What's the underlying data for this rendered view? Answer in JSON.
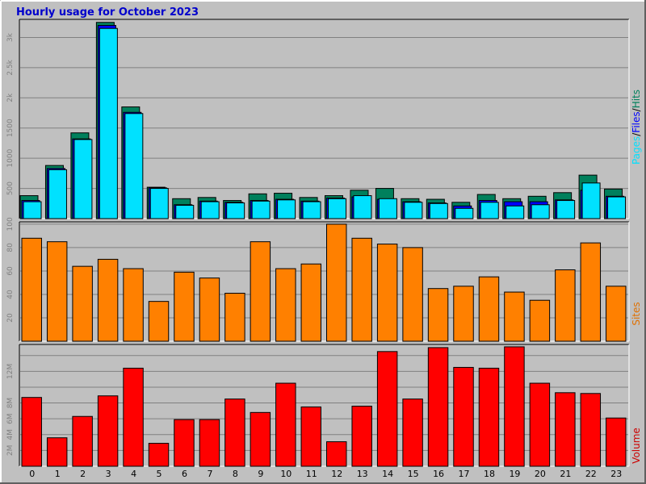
{
  "title": "Hourly usage for October 2023",
  "colors": {
    "frame": "#c0c0c0",
    "plot_bg": "#c0c0c0",
    "grid": "#808080",
    "title": "#0000cc",
    "hits": "#00805c",
    "files": "#0000ff",
    "pages": "#00e1ff",
    "sites": "#ff8000",
    "volume": "#ff0000",
    "tick_text": "#808080"
  },
  "chart_data": [
    {
      "type": "bar",
      "panel": "hits-files-pages",
      "categories": [
        "0",
        "1",
        "2",
        "3",
        "4",
        "5",
        "6",
        "7",
        "8",
        "9",
        "10",
        "11",
        "12",
        "13",
        "14",
        "15",
        "16",
        "17",
        "18",
        "19",
        "20",
        "21",
        "22",
        "23"
      ],
      "series": [
        {
          "name": "Hits",
          "values": [
            380,
            880,
            1420,
            3250,
            1850,
            520,
            330,
            350,
            300,
            410,
            420,
            350,
            380,
            470,
            500,
            330,
            320,
            270,
            400,
            330,
            370,
            430,
            720,
            490
          ]
        },
        {
          "name": "Files",
          "values": [
            300,
            830,
            1320,
            3200,
            1760,
            510,
            230,
            290,
            270,
            300,
            320,
            290,
            340,
            360,
            320,
            280,
            260,
            210,
            300,
            280,
            280,
            310,
            470,
            370
          ]
        },
        {
          "name": "Pages",
          "values": [
            280,
            810,
            1310,
            3150,
            1740,
            500,
            220,
            280,
            260,
            290,
            310,
            280,
            330,
            380,
            330,
            270,
            250,
            170,
            270,
            210,
            230,
            300,
            590,
            360
          ]
        }
      ],
      "ylim": [
        0,
        3300
      ],
      "yticks": [
        500,
        1000,
        1500,
        2000,
        2500,
        3000
      ],
      "ytick_labels": [
        "500",
        "1000",
        "1500",
        "2k",
        "2.5k",
        "3k"
      ],
      "side_label_parts": [
        "Pages",
        "/",
        "Files",
        "/",
        "Hits"
      ],
      "grid": true
    },
    {
      "type": "bar",
      "panel": "sites",
      "categories": [
        "0",
        "1",
        "2",
        "3",
        "4",
        "5",
        "6",
        "7",
        "8",
        "9",
        "10",
        "11",
        "12",
        "13",
        "14",
        "15",
        "16",
        "17",
        "18",
        "19",
        "20",
        "21",
        "22",
        "23"
      ],
      "series": [
        {
          "name": "Sites",
          "values": [
            88,
            85,
            64,
            70,
            62,
            34,
            59,
            54,
            41,
            85,
            62,
            66,
            100,
            88,
            83,
            80,
            45,
            47,
            55,
            42,
            35,
            61,
            84,
            47
          ]
        }
      ],
      "ylim": [
        0,
        102
      ],
      "yticks": [
        20,
        40,
        60,
        80,
        100
      ],
      "ytick_labels": [
        "20",
        "40",
        "60",
        "80",
        "100"
      ],
      "side_label": "Sites",
      "grid": true
    },
    {
      "type": "bar",
      "panel": "volume",
      "categories": [
        "0",
        "1",
        "2",
        "3",
        "4",
        "5",
        "6",
        "7",
        "8",
        "9",
        "10",
        "11",
        "12",
        "13",
        "14",
        "15",
        "16",
        "17",
        "18",
        "19",
        "20",
        "21",
        "22",
        "23"
      ],
      "series": [
        {
          "name": "Volume",
          "values": [
            8.7,
            3.6,
            6.3,
            8.9,
            12.4,
            2.9,
            5.9,
            5.9,
            8.5,
            6.8,
            10.5,
            7.5,
            3.1,
            7.6,
            14.5,
            8.5,
            15.0,
            12.5,
            12.4,
            15.1,
            10.5,
            9.3,
            9.2,
            6.1
          ]
        }
      ],
      "ylim": [
        0,
        15.4
      ],
      "yticks": [
        2,
        4,
        6,
        8,
        12
      ],
      "ytick_labels": [
        "2M",
        "4M",
        "6M",
        "8M",
        "12M"
      ],
      "gridlines": [
        2,
        4,
        6,
        8,
        10,
        12,
        14
      ],
      "side_label": "Volume",
      "grid": true
    }
  ]
}
